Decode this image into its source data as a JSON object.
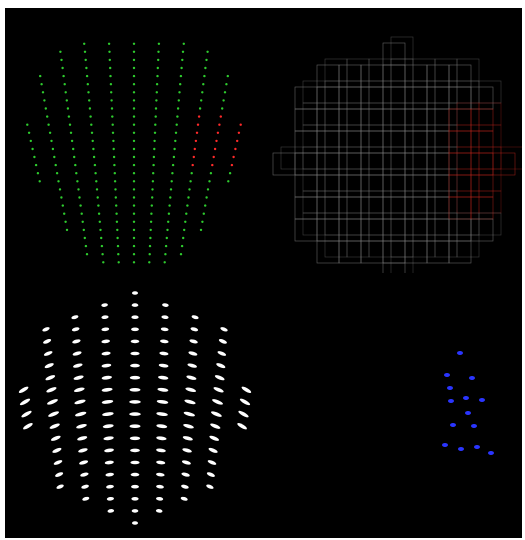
{
  "viewer": {
    "panes": [
      {
        "id": "green-points",
        "render": "points",
        "color": "#2ecc2e",
        "highlight_color": "#ff2a2a"
      },
      {
        "id": "voxel-grid",
        "render": "wireframe",
        "color": "#8c8c8c",
        "highlight_color": "#c8281e"
      },
      {
        "id": "white-glyphs",
        "render": "glyphs",
        "color": "#ffffff"
      },
      {
        "id": "blue-glyphs",
        "render": "glyphs",
        "color": "#2a35ff"
      }
    ],
    "background": "#000000"
  }
}
